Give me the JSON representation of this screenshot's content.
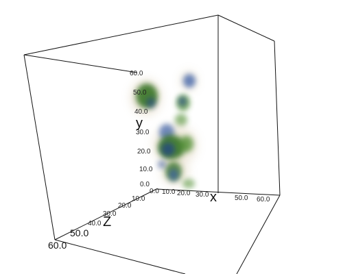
{
  "scene": {
    "box_color": "#111111",
    "blob_palette": [
      "#2f6e1c",
      "#4a8a2a",
      "#3a5fa8",
      "#1f3f8c",
      "#c7b48a"
    ]
  },
  "axes": {
    "x": {
      "title": "x",
      "ticks": [
        "0.0",
        "10.0",
        "20.0",
        "30.0",
        "50.0",
        "60.0"
      ]
    },
    "y": {
      "title": "y",
      "ticks": [
        "0.0",
        "10.0",
        "20.0",
        "30.0",
        "40.0",
        "50.0",
        "60.0"
      ]
    },
    "z": {
      "title": "Z",
      "ticks": [
        "10.0",
        "20.0",
        "30.0",
        "40.0",
        "50.0",
        "60.0"
      ]
    }
  }
}
